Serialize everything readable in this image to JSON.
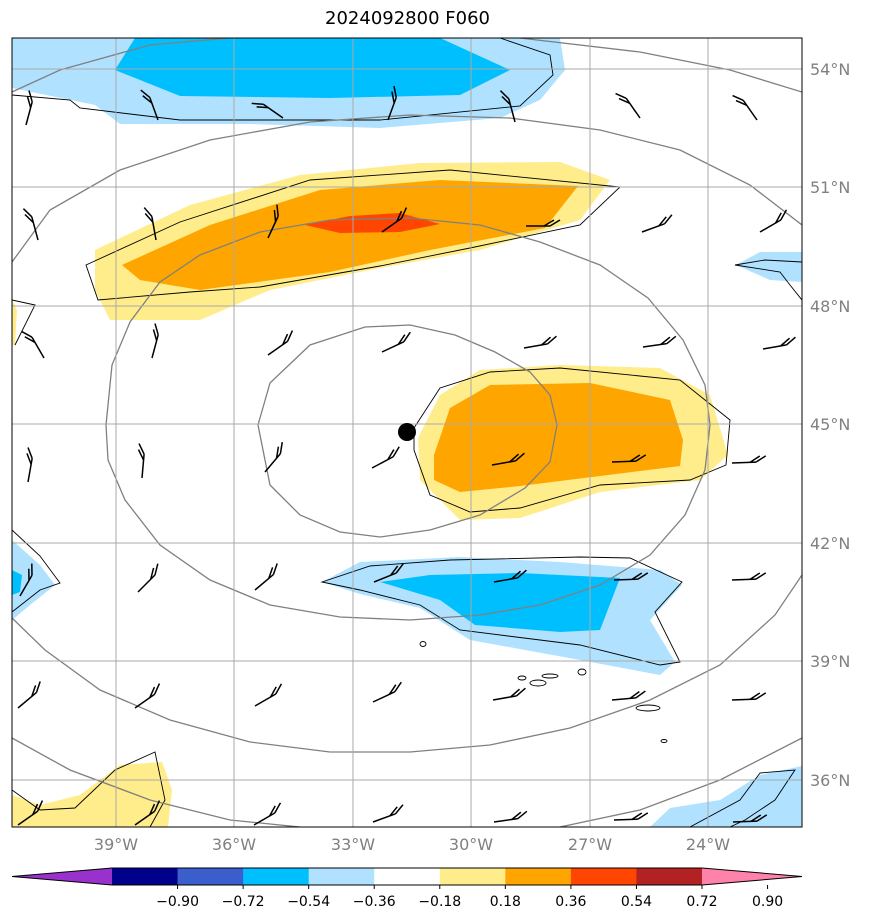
{
  "title": "2024092800 F060",
  "latitude_labels": [
    "54°N",
    "51°N",
    "48°N",
    "45°N",
    "42°N",
    "39°N",
    "36°N"
  ],
  "longitude_labels": [
    "39°W",
    "36°W",
    "33°W",
    "30°W",
    "27°W",
    "24°W"
  ],
  "colorbar": {
    "colors": [
      "#9932cc",
      "#00008b",
      "#3a5fcd",
      "#00bfff",
      "#b0e2ff",
      "#ffffff",
      "#ffec8b",
      "#ffa500",
      "#ff4500",
      "#b22222",
      "#ff82ab"
    ],
    "ticks": [
      "−0.90",
      "−0.72",
      "−0.54",
      "−0.36",
      "−0.18",
      "0.18",
      "0.36",
      "0.54",
      "0.72",
      "0.90"
    ]
  },
  "colors": {
    "light_blue": "#b0e2ff",
    "blue": "#00bfff",
    "light_yellow": "#ffec8b",
    "orange": "#ffa500",
    "red_orange": "#ff4500",
    "grid": "#a9a9a9",
    "contour_gray": "#808080"
  },
  "marker": "storm-center-dot"
}
